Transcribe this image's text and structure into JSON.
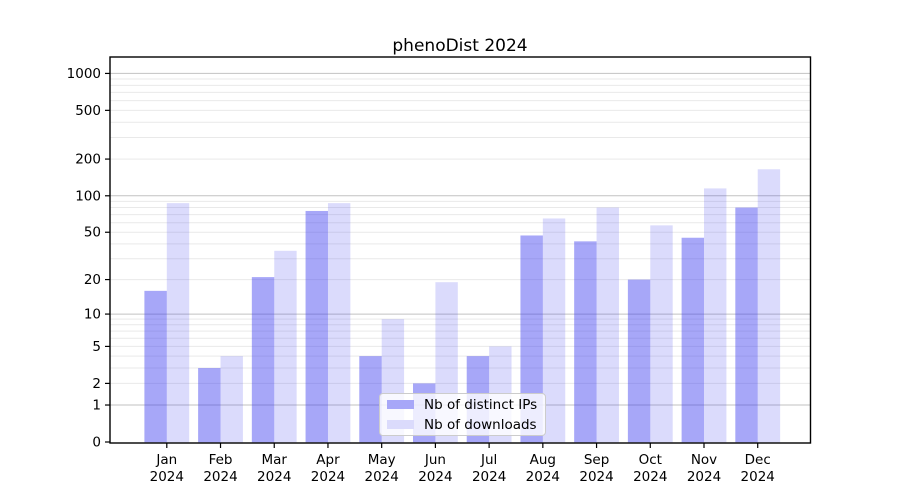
{
  "title": "phenoDist 2024",
  "chart_data": {
    "type": "bar",
    "title": "phenoDist 2024",
    "categories": [
      "Jan",
      "Feb",
      "Mar",
      "Apr",
      "May",
      "Jun",
      "Jul",
      "Aug",
      "Sep",
      "Oct",
      "Nov",
      "Dec"
    ],
    "category_year": "2024",
    "series": [
      {
        "name": "Nb of distinct IPs",
        "color": "#3c3cf0",
        "fill_opacity": 0.45,
        "values": [
          16,
          3,
          21,
          75,
          4,
          2,
          4,
          47,
          42,
          20,
          45,
          80
        ]
      },
      {
        "name": "Nb of downloads",
        "color": "#3c3cf0",
        "fill_opacity": 0.185,
        "values": [
          87,
          4,
          35,
          87,
          9,
          19,
          5,
          65,
          80,
          57,
          115,
          165
        ]
      }
    ],
    "yscale": "log1p",
    "ylim": [
      0,
      1370
    ],
    "y_ticks": [
      0,
      1,
      2,
      5,
      10,
      20,
      50,
      100,
      200,
      500,
      1000
    ],
    "y_minor_ticks": [
      3,
      4,
      6,
      7,
      8,
      9,
      30,
      40,
      60,
      70,
      80,
      90,
      300,
      400,
      600,
      700,
      800,
      900
    ],
    "grid": "horizontal",
    "legend_position": "lower-center",
    "colors": {
      "grid_major": "#c2c2c2",
      "grid_minor": "#e9e9e9",
      "axis": "#000000",
      "legend_border": "#cccccc"
    }
  }
}
